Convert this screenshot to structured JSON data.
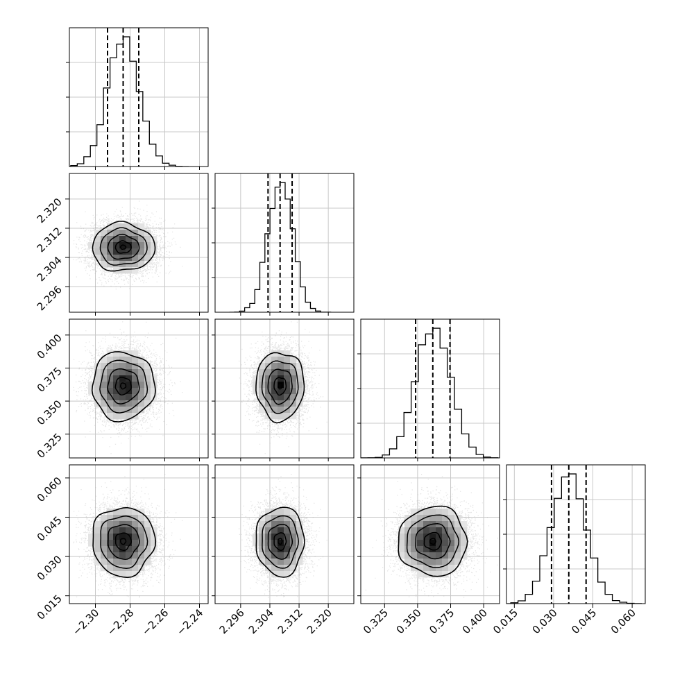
{
  "chart_data": {
    "type": "corner",
    "title": "",
    "grid": true,
    "parameters": [
      {
        "range": [
          -2.315,
          -2.235
        ],
        "ticks": [
          -2.3,
          -2.28,
          -2.26,
          -2.24
        ],
        "tick_labels": [
          "−2.30",
          "−2.28",
          "−2.26",
          "−2.24"
        ],
        "quantiles": [
          -2.293,
          -2.284,
          -2.275
        ],
        "mean": -2.284,
        "sd": 0.009
      },
      {
        "range": [
          2.289,
          2.327
        ],
        "ticks": [
          2.296,
          2.304,
          2.312,
          2.32
        ],
        "tick_labels": [
          "2.296",
          "2.304",
          "2.312",
          "2.320"
        ],
        "quantiles": [
          2.3035,
          2.3068,
          2.3101
        ],
        "mean": 2.3068,
        "sd": 0.0033
      },
      {
        "range": [
          0.307,
          0.412
        ],
        "ticks": [
          0.325,
          0.35,
          0.375,
          0.4
        ],
        "tick_labels": [
          "0.325",
          "0.350",
          "0.375",
          "0.400"
        ],
        "quantiles": [
          0.3485,
          0.3615,
          0.3745
        ],
        "mean": 0.3615,
        "sd": 0.013
      },
      {
        "range": [
          0.012,
          0.065
        ],
        "ticks": [
          0.015,
          0.03,
          0.045,
          0.06
        ],
        "tick_labels": [
          "0.015",
          "0.030",
          "0.045",
          "0.060"
        ],
        "quantiles": [
          0.0292,
          0.0358,
          0.0424
        ],
        "mean": 0.0358,
        "sd": 0.0066
      }
    ],
    "histogram_bins": 20
  }
}
